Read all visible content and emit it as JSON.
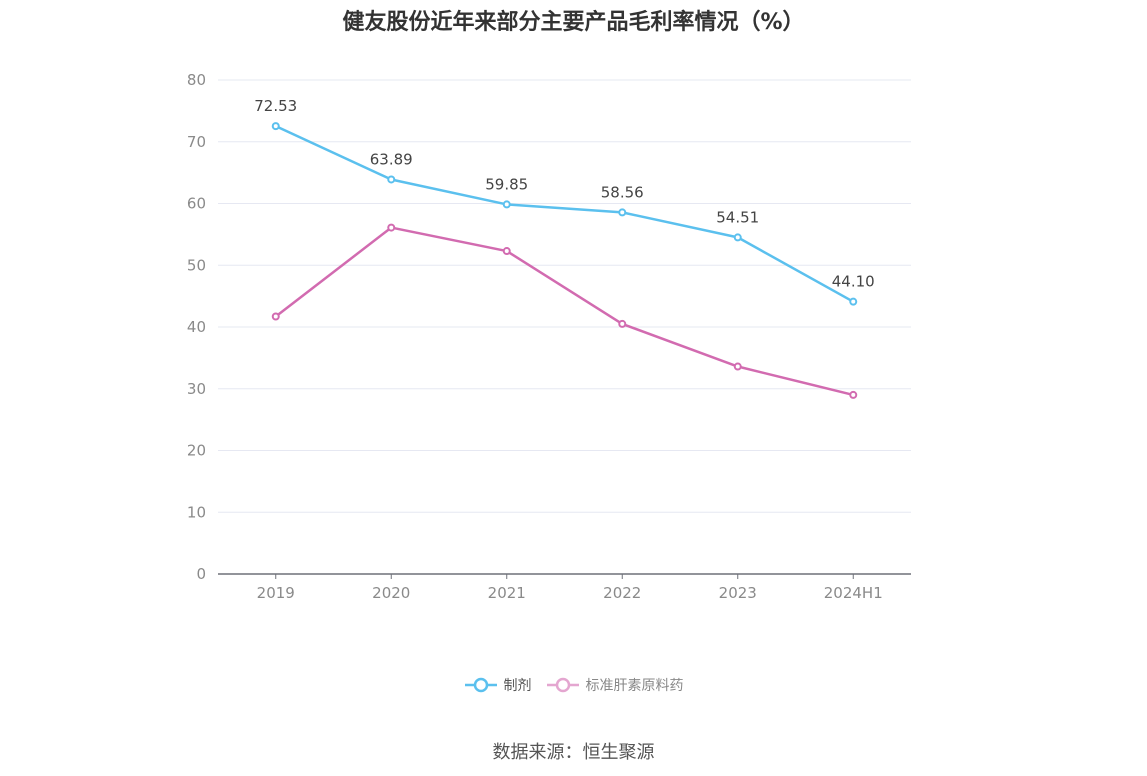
{
  "title": "健友股份近年来部分主要产品毛利率情况（%）",
  "source": "数据来源：恒生聚源",
  "colors": {
    "series0": "#5bc0ee",
    "series1": "#d26bb0",
    "grid": "#e6e8f2",
    "axis": "#6e7079"
  },
  "chart_data": {
    "type": "line",
    "title": "健友股份近年来部分主要产品毛利率情况（%）",
    "categories": [
      "2019",
      "2020",
      "2021",
      "2022",
      "2023",
      "2024H1"
    ],
    "y_ticks": [
      "0",
      "10",
      "20",
      "30",
      "40",
      "50",
      "60",
      "70",
      "80"
    ],
    "ylim": [
      0,
      80
    ],
    "grid": true,
    "legend_position": "bottom",
    "series": [
      {
        "name": "制剂",
        "values": [
          72.53,
          63.89,
          59.85,
          58.56,
          54.51,
          44.1
        ],
        "labels": [
          "72.53",
          "63.89",
          "59.85",
          "58.56",
          "54.51",
          "44.10"
        ]
      },
      {
        "name": "标准肝素原料药",
        "values": [
          41.7,
          56.1,
          52.3,
          40.5,
          33.6,
          29.0
        ]
      }
    ]
  }
}
